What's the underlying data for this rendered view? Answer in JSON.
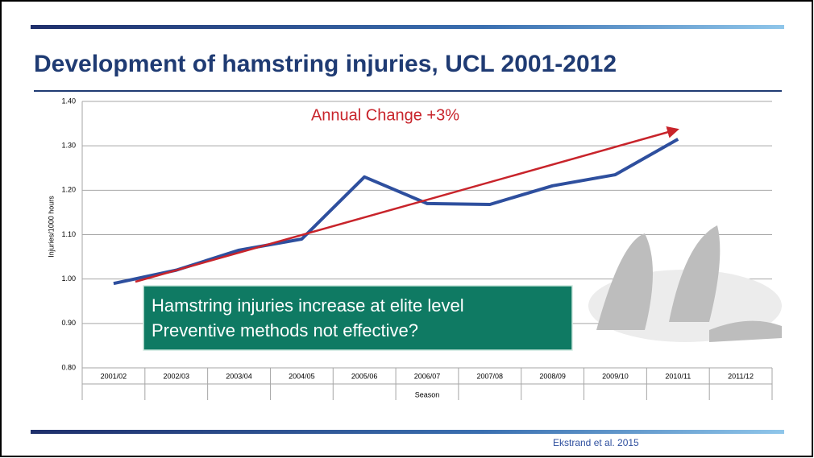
{
  "slide_title": "Development of hamstring injuries, UCL 2001-2012",
  "callout": [
    "Hamstring injuries increase at elite level",
    "Preventive methods not effective?"
  ],
  "footer": "Ekstrand et al. 2015",
  "chart_data": {
    "type": "line",
    "annotation": "Annual Change +3%",
    "y_label": "Injuries/1000 hours",
    "x_label": "Season",
    "categories": [
      "2001/02",
      "2002/03",
      "2003/04",
      "2004/05",
      "2005/06",
      "2006/07",
      "2007/08",
      "2008/09",
      "2009/10",
      "2010/11",
      "2011/12"
    ],
    "series": [
      {
        "color": "#2e4f9e",
        "values": [
          0.99,
          1.02,
          1.065,
          1.09,
          1.23,
          1.17,
          1.168,
          1.21,
          1.235,
          1.315,
          null
        ]
      }
    ],
    "ylim": [
      0.8,
      1.4
    ],
    "yticks": [
      {
        "value": 0.8,
        "label": "0.80"
      },
      {
        "value": 0.9,
        "label": "0.90"
      },
      {
        "value": 1.0,
        "label": "1.00"
      },
      {
        "value": 1.1,
        "label": "1.10"
      },
      {
        "value": 1.2,
        "label": "1.20"
      },
      {
        "value": 1.3,
        "label": "1.30"
      },
      {
        "value": 1.4,
        "label": "1.40"
      }
    ],
    "grid": true
  }
}
